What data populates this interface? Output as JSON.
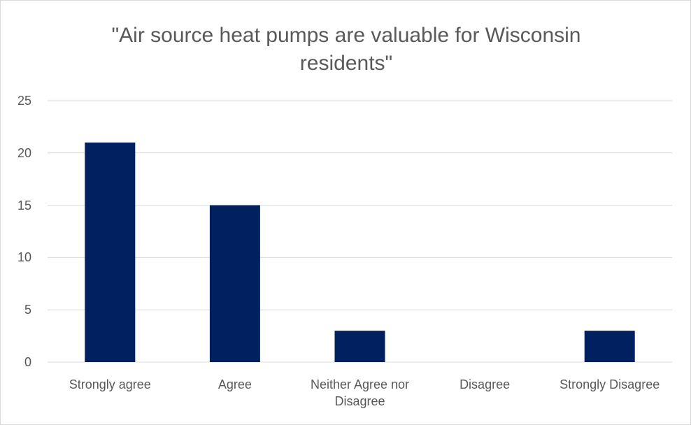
{
  "chart_data": {
    "type": "bar",
    "title": "\"Air source heat pumps are valuable for Wisconsin residents\"",
    "categories": [
      "Strongly agree",
      "Agree",
      "Neither Agree nor Disagree",
      "Disagree",
      "Strongly Disagree"
    ],
    "values": [
      21,
      15,
      3,
      0,
      3
    ],
    "color": "#002060",
    "ylim": [
      0,
      25
    ],
    "yticks": [
      0,
      5,
      10,
      15,
      20,
      25
    ],
    "grid": true
  }
}
